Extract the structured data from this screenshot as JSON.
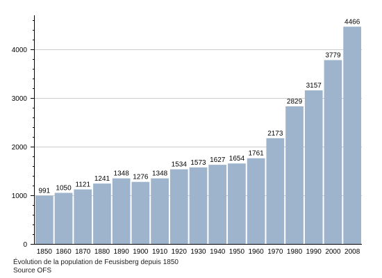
{
  "chart_data": {
    "type": "bar",
    "title": "",
    "xlabel": "",
    "ylabel": "",
    "categories": [
      "1850",
      "1860",
      "1870",
      "1880",
      "1890",
      "1900",
      "1910",
      "1920",
      "1930",
      "1940",
      "1950",
      "1960",
      "1970",
      "1980",
      "1990",
      "2000",
      "2008"
    ],
    "values": [
      991,
      1050,
      1121,
      1241,
      1348,
      1276,
      1348,
      1534,
      1573,
      1627,
      1654,
      1761,
      2173,
      2829,
      3157,
      3779,
      4466
    ],
    "ylim": [
      0,
      4700
    ],
    "yticks": [
      0,
      1000,
      2000,
      3000,
      4000
    ],
    "minor_tick_step": 200,
    "grid": true,
    "colors": {
      "bar": "#9db4cc",
      "grid": "#cccccc",
      "axis": "#000000"
    }
  },
  "caption": {
    "line1": "Évolution de la population de Feusisberg depuis 1850",
    "line2": "Source OFS"
  }
}
